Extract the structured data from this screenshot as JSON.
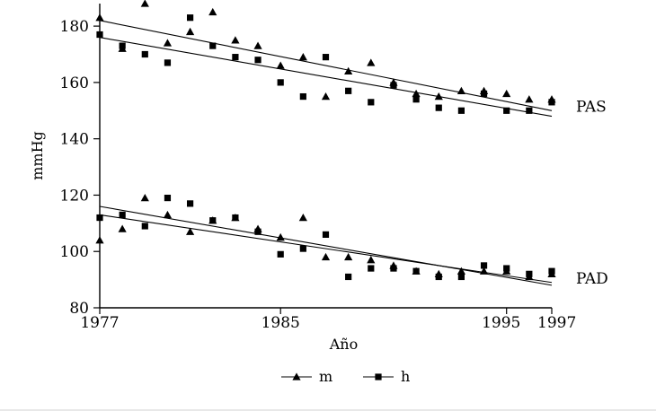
{
  "chart_data": {
    "type": "scatter",
    "xlabel": "Año",
    "ylabel": "mmHg",
    "xlim": [
      1977,
      1997
    ],
    "ylim": [
      80,
      188
    ],
    "x_ticks": [
      1977,
      1985,
      1995,
      1997
    ],
    "y_ticks": [
      80,
      100,
      120,
      140,
      160,
      180
    ],
    "grid": false,
    "legend_position": "bottom-center",
    "annotations": [
      {
        "text": "PAS",
        "at_value": 149
      },
      {
        "text": "PAD",
        "at_value": 88
      }
    ],
    "series": [
      {
        "name": "m",
        "group": "PAS",
        "marker": "triangle",
        "points": [
          [
            1977,
            183
          ],
          [
            1978,
            172
          ],
          [
            1979,
            188
          ],
          [
            1980,
            174
          ],
          [
            1981,
            178
          ],
          [
            1982,
            185
          ],
          [
            1983,
            175
          ],
          [
            1984,
            173
          ],
          [
            1985,
            166
          ],
          [
            1986,
            169
          ],
          [
            1987,
            155
          ],
          [
            1988,
            164
          ],
          [
            1989,
            167
          ],
          [
            1990,
            160
          ],
          [
            1991,
            156
          ],
          [
            1992,
            155
          ],
          [
            1993,
            157
          ],
          [
            1994,
            157
          ],
          [
            1995,
            156
          ],
          [
            1996,
            154
          ],
          [
            1997,
            154
          ]
        ],
        "trend": [
          [
            1977,
            182
          ],
          [
            1997,
            150
          ]
        ]
      },
      {
        "name": "h",
        "group": "PAS",
        "marker": "square",
        "points": [
          [
            1977,
            177
          ],
          [
            1978,
            173
          ],
          [
            1979,
            170
          ],
          [
            1980,
            167
          ],
          [
            1981,
            183
          ],
          [
            1982,
            173
          ],
          [
            1983,
            169
          ],
          [
            1984,
            168
          ],
          [
            1985,
            160
          ],
          [
            1986,
            155
          ],
          [
            1987,
            169
          ],
          [
            1988,
            157
          ],
          [
            1989,
            153
          ],
          [
            1990,
            159
          ],
          [
            1991,
            154
          ],
          [
            1992,
            151
          ],
          [
            1993,
            150
          ],
          [
            1994,
            156
          ],
          [
            1995,
            150
          ],
          [
            1996,
            150
          ],
          [
            1997,
            153
          ]
        ],
        "trend": [
          [
            1977,
            176
          ],
          [
            1997,
            148
          ]
        ]
      },
      {
        "name": "m",
        "group": "PAD",
        "marker": "triangle",
        "points": [
          [
            1977,
            104
          ],
          [
            1978,
            108
          ],
          [
            1979,
            119
          ],
          [
            1980,
            113
          ],
          [
            1981,
            107
          ],
          [
            1982,
            111
          ],
          [
            1983,
            112
          ],
          [
            1984,
            108
          ],
          [
            1985,
            105
          ],
          [
            1986,
            112
          ],
          [
            1987,
            98
          ],
          [
            1988,
            98
          ],
          [
            1989,
            97
          ],
          [
            1990,
            95
          ],
          [
            1991,
            93
          ],
          [
            1992,
            92
          ],
          [
            1993,
            93
          ],
          [
            1994,
            93
          ],
          [
            1995,
            93
          ],
          [
            1996,
            91
          ],
          [
            1997,
            92
          ]
        ],
        "trend": [
          [
            1977,
            116
          ],
          [
            1997,
            88
          ]
        ]
      },
      {
        "name": "h",
        "group": "PAD",
        "marker": "square",
        "points": [
          [
            1977,
            112
          ],
          [
            1978,
            113
          ],
          [
            1979,
            109
          ],
          [
            1980,
            119
          ],
          [
            1981,
            117
          ],
          [
            1982,
            111
          ],
          [
            1983,
            112
          ],
          [
            1984,
            107
          ],
          [
            1985,
            99
          ],
          [
            1986,
            101
          ],
          [
            1987,
            106
          ],
          [
            1988,
            91
          ],
          [
            1989,
            94
          ],
          [
            1990,
            94
          ],
          [
            1991,
            93
          ],
          [
            1992,
            91
          ],
          [
            1993,
            91
          ],
          [
            1994,
            95
          ],
          [
            1995,
            94
          ],
          [
            1996,
            92
          ],
          [
            1997,
            93
          ]
        ],
        "trend": [
          [
            1977,
            113
          ],
          [
            1997,
            89
          ]
        ]
      }
    ],
    "legend": [
      {
        "label": "m",
        "marker": "triangle"
      },
      {
        "label": "h",
        "marker": "square"
      }
    ]
  }
}
